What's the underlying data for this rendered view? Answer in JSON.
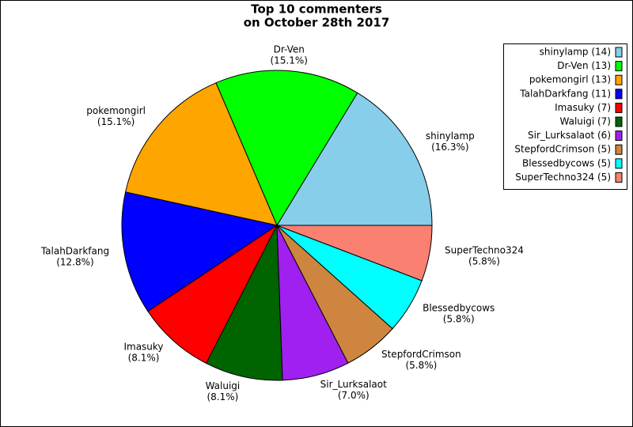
{
  "chart_data": {
    "type": "pie",
    "title": [
      "Top 10 commenters",
      "on October 28th 2017"
    ],
    "categories": [
      "shinylamp",
      "Dr-Ven",
      "pokemongirl",
      "TalahDarkfang",
      "Imasuky",
      "Waluigi",
      "Sir_Lurksalaot",
      "StepfordCrimson",
      "Blessedbycows",
      "SuperTechno324"
    ],
    "values": [
      16.3,
      15.1,
      15.1,
      12.8,
      8.1,
      8.1,
      7.0,
      5.8,
      5.8,
      5.8
    ],
    "value_labels": [
      "(16.3%)",
      "(15.1%)",
      "(15.1%)",
      "(12.8%)",
      "(8.1%)",
      "(8.1%)",
      "(7.0%)",
      "(5.8%)",
      "(5.8%)",
      "(5.8%)"
    ],
    "legend_labels": [
      "shinylamp (14)",
      "Dr-Ven (13)",
      "pokemongirl (13)",
      "TalahDarkfang (11)",
      "Imasuky (7)",
      "Waluigi (7)",
      "Sir_Lurksalaot (6)",
      "StepfordCrimson (5)",
      "Blessedbycows (5)",
      "SuperTechno324 (5)"
    ],
    "colors": [
      "#87ceeb",
      "#00ff00",
      "#ffa500",
      "#0000ff",
      "#ff0000",
      "#006400",
      "#a020f0",
      "#cd853f",
      "#00ffff",
      "#fa8072"
    ],
    "legend": "upper right"
  }
}
